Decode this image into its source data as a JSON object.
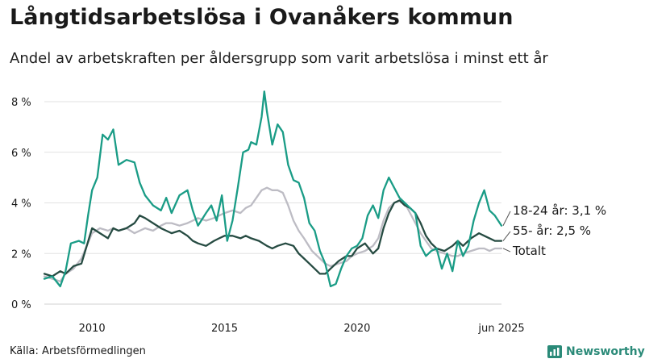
{
  "header": {
    "title": "Långtidsarbetslösa i Ovanåkers kommun",
    "subtitle": "Andel av arbetskraften per åldersgrupp som varit arbetslösa i minst ett år"
  },
  "footer": {
    "source": "Källa: Arbetsförmedlingen",
    "brand": "Newsworthy"
  },
  "colors": {
    "teal": "#1a9c86",
    "dark": "#264b42",
    "gray": "#bdbcc4",
    "brand": "#2a8a78"
  },
  "chart_data": {
    "type": "line",
    "title": "Långtidsarbetslösa i Ovanåkers kommun",
    "xlabel": "",
    "ylabel": "",
    "xlim": [
      2008.2,
      2025.45
    ],
    "ylim": [
      0,
      8.5
    ],
    "y_ticks": [
      {
        "value": 0,
        "label": "0 %"
      },
      {
        "value": 2,
        "label": "2 %"
      },
      {
        "value": 4,
        "label": "4 %"
      },
      {
        "value": 6,
        "label": "6 %"
      },
      {
        "value": 8,
        "label": "8 %"
      }
    ],
    "x_ticks": [
      {
        "value": 2010,
        "label": "2010"
      },
      {
        "value": 2015,
        "label": "2015"
      },
      {
        "value": 2020,
        "label": "2020"
      },
      {
        "value": 2025.45,
        "label": "jun 2025"
      }
    ],
    "grid": "horizontal",
    "legend": "end-labels",
    "series": [
      {
        "name": "Totalt",
        "color": "#bdbcc4",
        "x": [
          2008.2,
          2008.5,
          2008.8,
          2009.0,
          2009.3,
          2009.6,
          2009.8,
          2010.0,
          2010.3,
          2010.6,
          2010.8,
          2011.0,
          2011.3,
          2011.6,
          2011.8,
          2012.0,
          2012.3,
          2012.6,
          2012.8,
          2013.0,
          2013.3,
          2013.6,
          2013.8,
          2014.0,
          2014.3,
          2014.6,
          2014.8,
          2015.0,
          2015.3,
          2015.6,
          2015.8,
          2016.0,
          2016.2,
          2016.4,
          2016.6,
          2016.8,
          2017.0,
          2017.2,
          2017.4,
          2017.6,
          2017.8,
          2018.0,
          2018.3,
          2018.6,
          2018.8,
          2019.0,
          2019.3,
          2019.6,
          2019.8,
          2020.0,
          2020.3,
          2020.6,
          2020.8,
          2021.0,
          2021.2,
          2021.4,
          2021.6,
          2021.8,
          2022.0,
          2022.2,
          2022.4,
          2022.6,
          2022.8,
          2023.0,
          2023.3,
          2023.6,
          2023.8,
          2024.0,
          2024.3,
          2024.6,
          2024.8,
          2025.0,
          2025.2,
          2025.45
        ],
        "values": [
          1.1,
          1.0,
          0.9,
          1.2,
          1.4,
          1.8,
          2.3,
          2.8,
          3.0,
          2.9,
          3.0,
          2.9,
          3.0,
          2.8,
          2.9,
          3.0,
          2.9,
          3.1,
          3.2,
          3.2,
          3.1,
          3.2,
          3.3,
          3.4,
          3.3,
          3.4,
          3.5,
          3.6,
          3.7,
          3.6,
          3.8,
          3.9,
          4.2,
          4.5,
          4.6,
          4.5,
          4.5,
          4.4,
          3.9,
          3.3,
          2.9,
          2.6,
          2.1,
          1.8,
          1.6,
          1.5,
          1.6,
          1.7,
          1.9,
          2.0,
          2.1,
          2.3,
          2.6,
          3.3,
          3.8,
          4.0,
          4.1,
          4.0,
          3.6,
          3.2,
          2.8,
          2.5,
          2.2,
          2.1,
          2.0,
          1.9,
          1.9,
          2.0,
          2.1,
          2.2,
          2.2,
          2.1,
          2.2,
          2.2
        ]
      },
      {
        "name": "55- år",
        "color": "#264b42",
        "x": [
          2008.2,
          2008.5,
          2008.8,
          2009.0,
          2009.3,
          2009.6,
          2009.8,
          2010.0,
          2010.3,
          2010.6,
          2010.8,
          2011.0,
          2011.3,
          2011.6,
          2011.8,
          2012.0,
          2012.3,
          2012.6,
          2012.8,
          2013.0,
          2013.3,
          2013.6,
          2013.8,
          2014.0,
          2014.3,
          2014.6,
          2014.8,
          2015.0,
          2015.3,
          2015.6,
          2015.8,
          2016.0,
          2016.3,
          2016.6,
          2016.8,
          2017.0,
          2017.3,
          2017.6,
          2017.8,
          2018.0,
          2018.3,
          2018.6,
          2018.8,
          2019.0,
          2019.3,
          2019.6,
          2019.8,
          2020.0,
          2020.3,
          2020.6,
          2020.8,
          2021.0,
          2021.2,
          2021.4,
          2021.6,
          2021.8,
          2022.0,
          2022.2,
          2022.4,
          2022.6,
          2022.8,
          2023.0,
          2023.3,
          2023.6,
          2023.8,
          2024.0,
          2024.3,
          2024.6,
          2024.8,
          2025.0,
          2025.2,
          2025.45
        ],
        "values": [
          1.2,
          1.1,
          1.3,
          1.2,
          1.5,
          1.6,
          2.3,
          3.0,
          2.8,
          2.6,
          3.0,
          2.9,
          3.0,
          3.2,
          3.5,
          3.4,
          3.2,
          3.0,
          2.9,
          2.8,
          2.9,
          2.7,
          2.5,
          2.4,
          2.3,
          2.5,
          2.6,
          2.7,
          2.7,
          2.6,
          2.7,
          2.6,
          2.5,
          2.3,
          2.2,
          2.3,
          2.4,
          2.3,
          2.0,
          1.8,
          1.5,
          1.2,
          1.2,
          1.4,
          1.7,
          1.9,
          1.9,
          2.2,
          2.4,
          2.0,
          2.2,
          3.0,
          3.6,
          4.0,
          4.1,
          3.9,
          3.8,
          3.6,
          3.2,
          2.7,
          2.4,
          2.2,
          2.1,
          2.3,
          2.5,
          2.3,
          2.6,
          2.8,
          2.7,
          2.6,
          2.5,
          2.5
        ]
      },
      {
        "name": "18-24 år",
        "color": "#1a9c86",
        "x": [
          2008.2,
          2008.5,
          2008.8,
          2009.0,
          2009.2,
          2009.5,
          2009.7,
          2009.85,
          2010.0,
          2010.2,
          2010.4,
          2010.6,
          2010.8,
          2011.0,
          2011.3,
          2011.6,
          2011.8,
          2012.0,
          2012.3,
          2012.6,
          2012.8,
          2013.0,
          2013.3,
          2013.6,
          2013.8,
          2014.0,
          2014.3,
          2014.5,
          2014.7,
          2014.9,
          2015.1,
          2015.3,
          2015.5,
          2015.7,
          2015.9,
          2016.0,
          2016.2,
          2016.4,
          2016.5,
          2016.6,
          2016.8,
          2017.0,
          2017.2,
          2017.4,
          2017.6,
          2017.8,
          2018.0,
          2018.2,
          2018.4,
          2018.6,
          2018.8,
          2019.0,
          2019.2,
          2019.4,
          2019.6,
          2019.8,
          2020.0,
          2020.2,
          2020.4,
          2020.6,
          2020.8,
          2021.0,
          2021.2,
          2021.4,
          2021.6,
          2021.8,
          2022.0,
          2022.2,
          2022.4,
          2022.6,
          2022.8,
          2023.0,
          2023.2,
          2023.4,
          2023.6,
          2023.8,
          2024.0,
          2024.2,
          2024.4,
          2024.6,
          2024.8,
          2025.0,
          2025.2,
          2025.45
        ],
        "values": [
          1.0,
          1.1,
          0.7,
          1.3,
          2.4,
          2.5,
          2.4,
          3.5,
          4.5,
          5.0,
          6.7,
          6.5,
          6.9,
          5.5,
          5.7,
          5.6,
          4.8,
          4.3,
          3.9,
          3.7,
          4.2,
          3.6,
          4.3,
          4.5,
          3.7,
          3.1,
          3.6,
          3.9,
          3.3,
          4.3,
          2.5,
          3.3,
          4.6,
          6.0,
          6.1,
          6.4,
          6.3,
          7.4,
          8.4,
          7.6,
          6.3,
          7.1,
          6.8,
          5.5,
          4.9,
          4.8,
          4.2,
          3.2,
          2.9,
          2.1,
          1.6,
          0.7,
          0.8,
          1.4,
          1.9,
          2.2,
          2.3,
          2.6,
          3.5,
          3.9,
          3.4,
          4.5,
          5.0,
          4.6,
          4.2,
          4.0,
          3.8,
          3.6,
          2.3,
          1.9,
          2.1,
          2.2,
          1.4,
          2.0,
          1.3,
          2.5,
          1.9,
          2.3,
          3.3,
          4.0,
          4.5,
          3.7,
          3.5,
          3.1
        ]
      }
    ],
    "end_labels": [
      {
        "series": "18-24 år",
        "text": "18-24 år: 3,1 %",
        "y": 3.35
      },
      {
        "series": "55- år",
        "text": "55- år: 2,5 %",
        "y": 2.55
      },
      {
        "series": "Totalt",
        "text": "Totalt",
        "y": 1.75
      }
    ]
  }
}
